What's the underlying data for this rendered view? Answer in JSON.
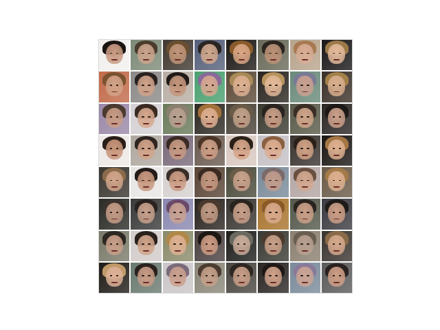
{
  "image": {
    "grid_rows": 8,
    "grid_cols": 8,
    "tiles": [
      {
        "bg": "#f2f0ee",
        "hair": "#1b1512",
        "skin": "#c89a82"
      },
      {
        "bg": "#7d8a78",
        "hair": "#4a3b2c",
        "skin": "#caa48c"
      },
      {
        "bg": "#403830",
        "hair": "#6b4e30",
        "skin": "#bf9478"
      },
      {
        "bg": "#56607a",
        "hair": "#2a2522",
        "skin": "#d0a88f"
      },
      {
        "bg": "#1d1a16",
        "hair": "#8a5b2a",
        "skin": "#d9a684"
      },
      {
        "bg": "#6a6a5a",
        "hair": "#2b2420",
        "skin": "#bb9277"
      },
      {
        "bg": "#b7a48c",
        "hair": "#a87a52",
        "skin": "#d8ad95"
      },
      {
        "bg": "#1a1818",
        "hair": "#9c7a48",
        "skin": "#e0b89a"
      },
      {
        "bg": "#c26a4a",
        "hair": "#7a5230",
        "skin": "#d2a286"
      },
      {
        "bg": "#8c8a88",
        "hair": "#2a2220",
        "skin": "#cfa28a"
      },
      {
        "bg": "#b8aea4",
        "hair": "#1f1a18",
        "skin": "#c4967c"
      },
      {
        "bg": "#4aa070",
        "hair": "#8a6a9a",
        "skin": "#d6a890"
      },
      {
        "bg": "#5c4a38",
        "hair": "#a88a58",
        "skin": "#dcb092"
      },
      {
        "bg": "#2a2520",
        "hair": "#b89460",
        "skin": "#e2b898"
      },
      {
        "bg": "#6a8a7a",
        "hair": "#7a7a96",
        "skin": "#c8a090"
      },
      {
        "bg": "#3a3028",
        "hair": "#a28048",
        "skin": "#d8ae8e"
      },
      {
        "bg": "#9a88a8",
        "hair": "#4a3a30",
        "skin": "#c89c86"
      },
      {
        "bg": "#d4d0d4",
        "hair": "#3a2a22",
        "skin": "#d6a88e"
      },
      {
        "bg": "#6a7a5a",
        "hair": "#8a8070",
        "skin": "#b8a090"
      },
      {
        "bg": "#2e2a24",
        "hair": "#a2703a",
        "skin": "#dcae90"
      },
      {
        "bg": "#4a4238",
        "hair": "#6a5a48",
        "skin": "#c0a088"
      },
      {
        "bg": "#3a3a30",
        "hair": "#2a2420",
        "skin": "#c89e86"
      },
      {
        "bg": "#5a5a4a",
        "hair": "#3a2e26",
        "skin": "#d0a68a"
      },
      {
        "bg": "#2a2624",
        "hair": "#1e1816",
        "skin": "#caa08a"
      },
      {
        "bg": "#ece8e6",
        "hair": "#2a1e18",
        "skin": "#c8967a"
      },
      {
        "bg": "#b0a8a0",
        "hair": "#2e2420",
        "skin": "#d2a48a"
      },
      {
        "bg": "#7a6a7a",
        "hair": "#3a2a24",
        "skin": "#c69a84"
      },
      {
        "bg": "#6a5a50",
        "hair": "#4a3426",
        "skin": "#cc9e86"
      },
      {
        "bg": "#d8c8c0",
        "hair": "#2a2018",
        "skin": "#d4a488"
      },
      {
        "bg": "#c4c0c4",
        "hair": "#8a6040",
        "skin": "#dcae92"
      },
      {
        "bg": "#3a3430",
        "hair": "#2a2018",
        "skin": "#d0a286"
      },
      {
        "bg": "#1a1614",
        "hair": "#a47644",
        "skin": "#dcb090"
      },
      {
        "bg": "#3a3630",
        "hair": "#8a6a4a",
        "skin": "#d0a48a"
      },
      {
        "bg": "#e8e6e4",
        "hair": "#241c18",
        "skin": "#c89880"
      },
      {
        "bg": "#d6d0d0",
        "hair": "#3a2e28",
        "skin": "#cc9c84"
      },
      {
        "bg": "#5a4436",
        "hair": "#3a2a22",
        "skin": "#c49880"
      },
      {
        "bg": "#4a4a3a",
        "hair": "#6a5a48",
        "skin": "#c8a28c"
      },
      {
        "bg": "#7a8a9a",
        "hair": "#7a6a6a",
        "skin": "#c09c8c"
      },
      {
        "bg": "#b4a6a4",
        "hair": "#6a5040",
        "skin": "#d2a890"
      },
      {
        "bg": "#6a5a48",
        "hair": "#a47a48",
        "skin": "#dcb090"
      },
      {
        "bg": "#2a2a26",
        "hair": "#3a322c",
        "skin": "#c49c86"
      },
      {
        "bg": "#3a3a3a",
        "hair": "#2a2220",
        "skin": "#c6a08c"
      },
      {
        "bg": "#8a88b0",
        "hair": "#6a4a6a",
        "skin": "#c8a292"
      },
      {
        "bg": "#2a2420",
        "hair": "#4a3a2e",
        "skin": "#c09a84"
      },
      {
        "bg": "#3a3632",
        "hair": "#2a241e",
        "skin": "#c8a08a"
      },
      {
        "bg": "#a8742e",
        "hair": "#8a5a28",
        "skin": "#d8aa8c"
      },
      {
        "bg": "#54584a",
        "hair": "#2a2420",
        "skin": "#caa088"
      },
      {
        "bg": "#3a3a40",
        "hair": "#1e1a18",
        "skin": "#cc9e86"
      },
      {
        "bg": "#7a7a6a",
        "hair": "#2e2822",
        "skin": "#c8a08a"
      },
      {
        "bg": "#d2ccca",
        "hair": "#2a201c",
        "skin": "#d0a48a"
      },
      {
        "bg": "#8a8a6a",
        "hair": "#b08848",
        "skin": "#dcb092"
      },
      {
        "bg": "#4a4040",
        "hair": "#1e1814",
        "skin": "#cc9c84"
      },
      {
        "bg": "#1e1e1c",
        "hair": "#6a6a60",
        "skin": "#c8aa98"
      },
      {
        "bg": "#3a3a34",
        "hair": "#4a3a2e",
        "skin": "#c8a088"
      },
      {
        "bg": "#8a8070",
        "hair": "#6a5e50",
        "skin": "#b8a090"
      },
      {
        "bg": "#3a3430",
        "hair": "#8a6a48",
        "skin": "#d4a88c"
      },
      {
        "bg": "#201c18",
        "hair": "#c09a68",
        "skin": "#dcb096"
      },
      {
        "bg": "#6a7a70",
        "hair": "#2a221e",
        "skin": "#c89c86"
      },
      {
        "bg": "#cac6c8",
        "hair": "#7a6a7a",
        "skin": "#caa08e"
      },
      {
        "bg": "#8a8678",
        "hair": "#4a3a30",
        "skin": "#c4a08a"
      },
      {
        "bg": "#4a4640",
        "hair": "#2e2620",
        "skin": "#c89e88"
      },
      {
        "bg": "#2a2624",
        "hair": "#1e1816",
        "skin": "#d0a28a"
      },
      {
        "bg": "#7a8a9a",
        "hair": "#8a7a9a",
        "skin": "#caa494"
      },
      {
        "bg": "#5a5a5a",
        "hair": "#2a2220",
        "skin": "#cc9e86"
      }
    ]
  }
}
